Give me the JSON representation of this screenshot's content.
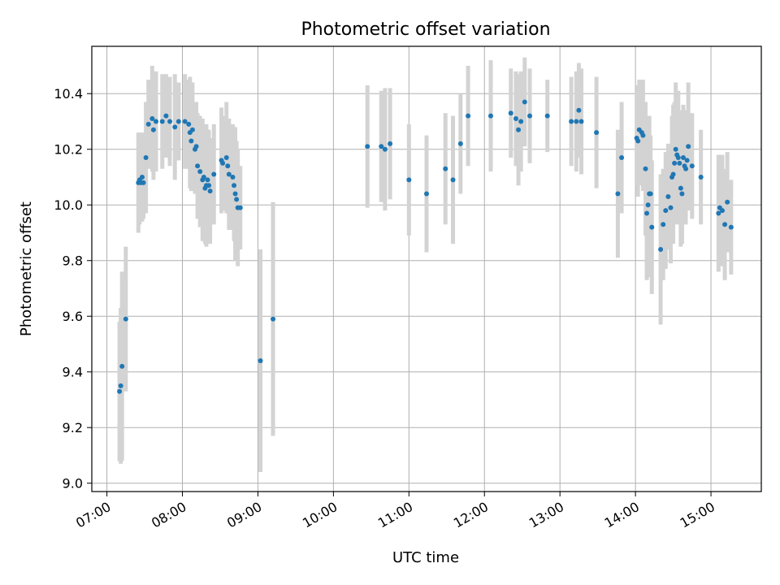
{
  "chart_data": {
    "type": "scatter",
    "title": "Photometric offset variation",
    "xlabel": "UTC time",
    "ylabel": "Photometric offset",
    "x_ticks": [
      "07:00",
      "08:00",
      "09:00",
      "10:00",
      "11:00",
      "12:00",
      "13:00",
      "14:00",
      "15:00"
    ],
    "y_ticks": [
      "9.0",
      "9.2",
      "9.4",
      "9.6",
      "9.8",
      "10.0",
      "10.2",
      "10.4"
    ],
    "xlim": [
      "06:48",
      "15:40"
    ],
    "ylim": [
      8.97,
      10.57
    ],
    "grid": true,
    "point_color": "#1f77b4",
    "errorbar_color": "#d3d3d3",
    "points": [
      {
        "x": "07:10",
        "y": 9.33,
        "err": 0.25
      },
      {
        "x": "07:11",
        "y": 9.35,
        "err": 0.28
      },
      {
        "x": "07:12",
        "y": 9.42,
        "err": 0.34
      },
      {
        "x": "07:15",
        "y": 9.59,
        "err": 0.26
      },
      {
        "x": "07:25",
        "y": 10.08,
        "err": 0.18
      },
      {
        "x": "07:26",
        "y": 10.09,
        "err": 0.16
      },
      {
        "x": "07:27",
        "y": 10.08,
        "err": 0.14
      },
      {
        "x": "07:28",
        "y": 10.1,
        "err": 0.16
      },
      {
        "x": "07:29",
        "y": 10.08,
        "err": 0.13
      },
      {
        "x": "07:31",
        "y": 10.17,
        "err": 0.2
      },
      {
        "x": "07:33",
        "y": 10.29,
        "err": 0.16
      },
      {
        "x": "07:36",
        "y": 10.31,
        "err": 0.19
      },
      {
        "x": "07:37",
        "y": 10.27,
        "err": 0.18
      },
      {
        "x": "07:39",
        "y": 10.3,
        "err": 0.18
      },
      {
        "x": "07:44",
        "y": 10.3,
        "err": 0.17
      },
      {
        "x": "07:47",
        "y": 10.32,
        "err": 0.15
      },
      {
        "x": "07:50",
        "y": 10.3,
        "err": 0.16
      },
      {
        "x": "07:54",
        "y": 10.28,
        "err": 0.19
      },
      {
        "x": "07:57",
        "y": 10.3,
        "err": 0.14
      },
      {
        "x": "08:02",
        "y": 10.3,
        "err": 0.17
      },
      {
        "x": "08:05",
        "y": 10.29,
        "err": 0.16
      },
      {
        "x": "08:06",
        "y": 10.26,
        "err": 0.2
      },
      {
        "x": "08:07",
        "y": 10.23,
        "err": 0.18
      },
      {
        "x": "08:08",
        "y": 10.27,
        "err": 0.17
      },
      {
        "x": "08:10",
        "y": 10.2,
        "err": 0.16
      },
      {
        "x": "08:11",
        "y": 10.21,
        "err": 0.16
      },
      {
        "x": "08:12",
        "y": 10.14,
        "err": 0.19
      },
      {
        "x": "08:14",
        "y": 10.12,
        "err": 0.2
      },
      {
        "x": "08:16",
        "y": 10.09,
        "err": 0.22
      },
      {
        "x": "08:17",
        "y": 10.1,
        "err": 0.17
      },
      {
        "x": "08:18",
        "y": 10.06,
        "err": 0.2
      },
      {
        "x": "08:19",
        "y": 10.07,
        "err": 0.22
      },
      {
        "x": "08:20",
        "y": 10.09,
        "err": 0.18
      },
      {
        "x": "08:21",
        "y": 10.07,
        "err": 0.2
      },
      {
        "x": "08:22",
        "y": 10.05,
        "err": 0.19
      },
      {
        "x": "08:25",
        "y": 10.11,
        "err": 0.18
      },
      {
        "x": "08:31",
        "y": 10.16,
        "err": 0.19
      },
      {
        "x": "08:32",
        "y": 10.15,
        "err": 0.17
      },
      {
        "x": "08:35",
        "y": 10.17,
        "err": 0.2
      },
      {
        "x": "08:36",
        "y": 10.14,
        "err": 0.17
      },
      {
        "x": "08:37",
        "y": 10.11,
        "err": 0.2
      },
      {
        "x": "08:40",
        "y": 10.1,
        "err": 0.19
      },
      {
        "x": "08:41",
        "y": 10.07,
        "err": 0.2
      },
      {
        "x": "08:42",
        "y": 10.04,
        "err": 0.24
      },
      {
        "x": "08:43",
        "y": 10.02,
        "err": 0.21
      },
      {
        "x": "08:44",
        "y": 9.99,
        "err": 0.21
      },
      {
        "x": "08:46",
        "y": 9.99,
        "err": 0.15
      },
      {
        "x": "09:02",
        "y": 9.44,
        "err": 0.4
      },
      {
        "x": "09:12",
        "y": 9.59,
        "err": 0.42
      },
      {
        "x": "10:27",
        "y": 10.21,
        "err": 0.22
      },
      {
        "x": "10:38",
        "y": 10.21,
        "err": 0.2
      },
      {
        "x": "10:41",
        "y": 10.2,
        "err": 0.22
      },
      {
        "x": "10:45",
        "y": 10.22,
        "err": 0.2
      },
      {
        "x": "11:00",
        "y": 10.09,
        "err": 0.2
      },
      {
        "x": "11:14",
        "y": 10.04,
        "err": 0.21
      },
      {
        "x": "11:29",
        "y": 10.13,
        "err": 0.2
      },
      {
        "x": "11:35",
        "y": 10.09,
        "err": 0.23
      },
      {
        "x": "11:41",
        "y": 10.22,
        "err": 0.18
      },
      {
        "x": "11:47",
        "y": 10.32,
        "err": 0.18
      },
      {
        "x": "12:05",
        "y": 10.32,
        "err": 0.2
      },
      {
        "x": "12:21",
        "y": 10.33,
        "err": 0.16
      },
      {
        "x": "12:25",
        "y": 10.31,
        "err": 0.17
      },
      {
        "x": "12:27",
        "y": 10.27,
        "err": 0.2
      },
      {
        "x": "12:29",
        "y": 10.3,
        "err": 0.18
      },
      {
        "x": "12:32",
        "y": 10.37,
        "err": 0.16
      },
      {
        "x": "12:36",
        "y": 10.32,
        "err": 0.17
      },
      {
        "x": "12:50",
        "y": 10.32,
        "err": 0.13
      },
      {
        "x": "13:09",
        "y": 10.3,
        "err": 0.16
      },
      {
        "x": "13:13",
        "y": 10.3,
        "err": 0.18
      },
      {
        "x": "13:15",
        "y": 10.34,
        "err": 0.17
      },
      {
        "x": "13:17",
        "y": 10.3,
        "err": 0.19
      },
      {
        "x": "13:29",
        "y": 10.26,
        "err": 0.2
      },
      {
        "x": "13:46",
        "y": 10.04,
        "err": 0.23
      },
      {
        "x": "13:49",
        "y": 10.17,
        "err": 0.2
      },
      {
        "x": "14:01",
        "y": 10.24,
        "err": 0.17
      },
      {
        "x": "14:02",
        "y": 10.23,
        "err": 0.2
      },
      {
        "x": "14:03",
        "y": 10.27,
        "err": 0.18
      },
      {
        "x": "14:05",
        "y": 10.26,
        "err": 0.19
      },
      {
        "x": "14:06",
        "y": 10.25,
        "err": 0.2
      },
      {
        "x": "14:08",
        "y": 10.13,
        "err": 0.24
      },
      {
        "x": "14:09",
        "y": 9.97,
        "err": 0.24
      },
      {
        "x": "14:10",
        "y": 10.0,
        "err": 0.26
      },
      {
        "x": "14:11",
        "y": 10.04,
        "err": 0.28
      },
      {
        "x": "14:12",
        "y": 10.04,
        "err": 0.21
      },
      {
        "x": "14:13",
        "y": 9.92,
        "err": 0.24
      },
      {
        "x": "14:20",
        "y": 9.84,
        "err": 0.27
      },
      {
        "x": "14:22",
        "y": 9.93,
        "err": 0.2
      },
      {
        "x": "14:24",
        "y": 9.98,
        "err": 0.21
      },
      {
        "x": "14:26",
        "y": 10.03,
        "err": 0.19
      },
      {
        "x": "14:28",
        "y": 9.99,
        "err": 0.2
      },
      {
        "x": "14:29",
        "y": 10.1,
        "err": 0.22
      },
      {
        "x": "14:30",
        "y": 10.11,
        "err": 0.25
      },
      {
        "x": "14:31",
        "y": 10.15,
        "err": 0.22
      },
      {
        "x": "14:32",
        "y": 10.2,
        "err": 0.24
      },
      {
        "x": "14:33",
        "y": 10.18,
        "err": 0.21
      },
      {
        "x": "14:34",
        "y": 10.17,
        "err": 0.24
      },
      {
        "x": "14:35",
        "y": 10.15,
        "err": 0.19
      },
      {
        "x": "14:36",
        "y": 10.06,
        "err": 0.21
      },
      {
        "x": "14:37",
        "y": 10.04,
        "err": 0.18
      },
      {
        "x": "14:38",
        "y": 10.17,
        "err": 0.19
      },
      {
        "x": "14:39",
        "y": 10.14,
        "err": 0.2
      },
      {
        "x": "14:40",
        "y": 10.13,
        "err": 0.2
      },
      {
        "x": "14:41",
        "y": 10.16,
        "err": 0.17
      },
      {
        "x": "14:42",
        "y": 10.21,
        "err": 0.23
      },
      {
        "x": "14:45",
        "y": 10.14,
        "err": 0.19
      },
      {
        "x": "14:52",
        "y": 10.1,
        "err": 0.17
      },
      {
        "x": "15:06",
        "y": 9.97,
        "err": 0.21
      },
      {
        "x": "15:07",
        "y": 9.99,
        "err": 0.19
      },
      {
        "x": "15:09",
        "y": 9.98,
        "err": 0.2
      },
      {
        "x": "15:11",
        "y": 9.93,
        "err": 0.2
      },
      {
        "x": "15:13",
        "y": 10.01,
        "err": 0.18
      },
      {
        "x": "15:16",
        "y": 9.92,
        "err": 0.17
      }
    ]
  }
}
